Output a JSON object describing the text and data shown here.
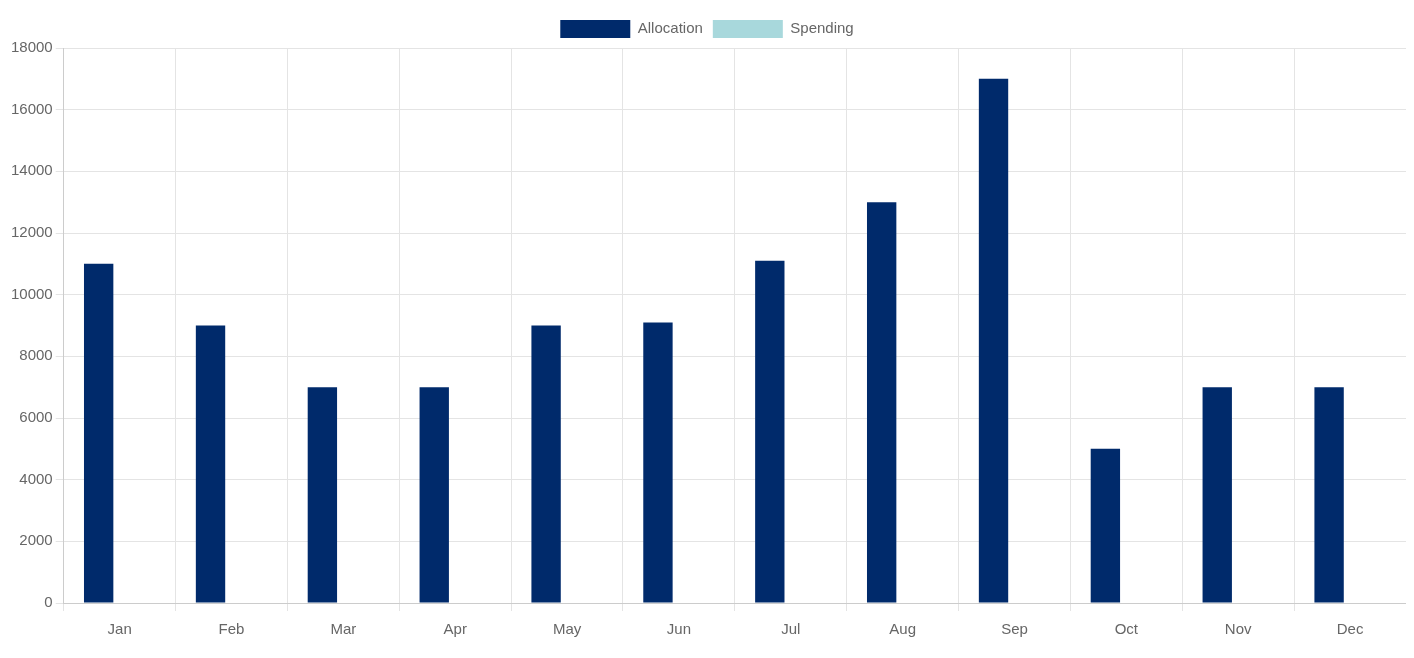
{
  "chart_data": {
    "type": "bar",
    "categories": [
      "Jan",
      "Feb",
      "Mar",
      "Apr",
      "May",
      "Jun",
      "Jul",
      "Aug",
      "Sep",
      "Oct",
      "Nov",
      "Dec"
    ],
    "series": [
      {
        "name": "Allocation",
        "color": "#002a6b",
        "values": [
          11000,
          9000,
          7000,
          7000,
          9000,
          9100,
          11100,
          13000,
          17000,
          5000,
          7000,
          7000
        ]
      },
      {
        "name": "Spending",
        "color": "#a8d8dc",
        "values": [
          0,
          0,
          0,
          0,
          0,
          0,
          0,
          0,
          0,
          0,
          0,
          0
        ]
      }
    ],
    "ylim": [
      0,
      18000
    ],
    "yticks": [
      0,
      2000,
      4000,
      6000,
      8000,
      10000,
      12000,
      14000,
      16000,
      18000
    ],
    "grid": true,
    "legend": "top"
  }
}
